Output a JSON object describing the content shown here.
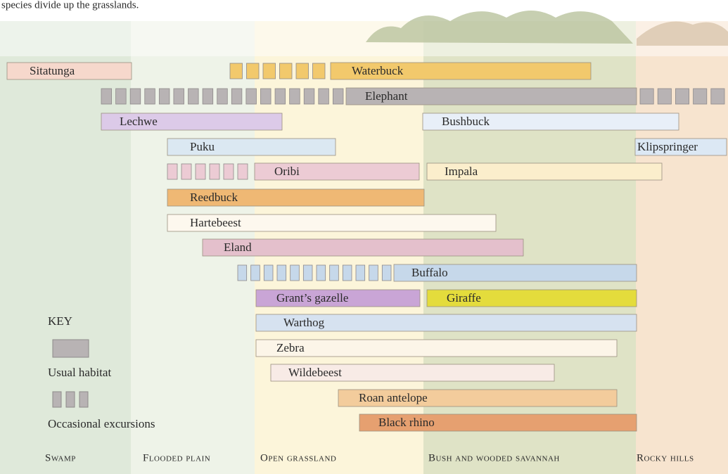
{
  "caption": "species divide up the grasslands.",
  "zones": [
    "Swamp",
    "Flooded plain",
    "Open grassland",
    "Bush and wooded savannah",
    "Rocky hills"
  ],
  "key": {
    "title": "KEY",
    "usual": "Usual habitat",
    "occasional": "Occasional excursions"
  },
  "animals": [
    "Sitatunga",
    "Waterbuck",
    "Elephant",
    "Lechwe",
    "Bushbuck",
    "Puku",
    "Klipspringer",
    "Oribi",
    "Impala",
    "Reedbuck",
    "Hartebeest",
    "Eland",
    "Buffalo",
    "Grant’s gazelle",
    "Giraffe",
    "Warthog",
    "Zebra",
    "Wildebeest",
    "Roan antelope",
    "Black rhino"
  ]
}
